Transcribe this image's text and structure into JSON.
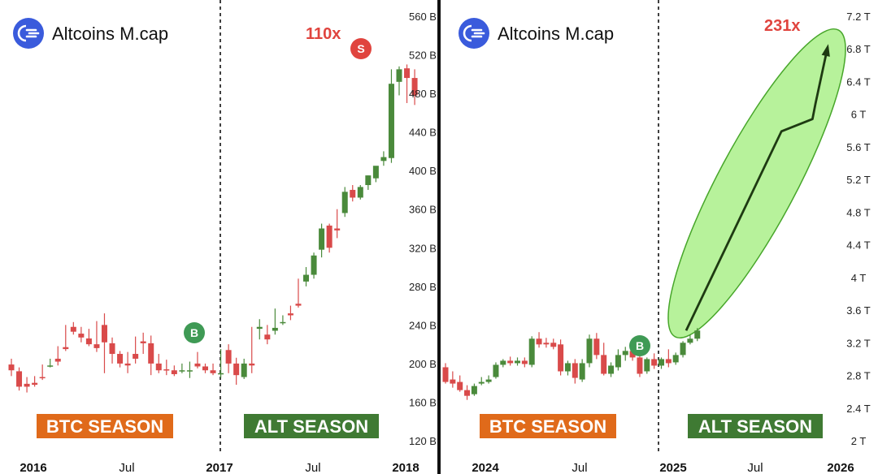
{
  "chart_data": [
    {
      "type": "candlestick",
      "title": "Altcoins M.cap",
      "y_unit": "B",
      "ylim": [
        120,
        560
      ],
      "yticks": [
        "560 B",
        "520 B",
        "480 B",
        "440 B",
        "400 B",
        "360 B",
        "320 B",
        "280 B",
        "240 B",
        "200 B",
        "160 B",
        "120 B"
      ],
      "ytick_values": [
        560,
        520,
        480,
        440,
        400,
        360,
        320,
        280,
        240,
        200,
        160,
        120
      ],
      "xticks": [
        "2016",
        "Jul",
        "2017",
        "Jul",
        "2018"
      ],
      "annotations": {
        "multiplier": "110x",
        "buy_marker": "B",
        "sell_marker": "S"
      },
      "seasons": [
        "BTC SEASON",
        "ALT SEASON"
      ],
      "colors": {
        "up": "#4a8a3b",
        "down": "#d94a4a",
        "btc_season": "#e06a1a",
        "alt_season": "#3f7a33",
        "sell": "#e0443e",
        "buy": "#3f9a55"
      },
      "candles": [
        [
          199,
          205,
          193,
          187
        ],
        [
          192,
          196,
          176,
          172
        ],
        [
          179,
          186,
          176,
          170
        ],
        [
          180,
          187,
          178,
          176
        ],
        [
          186,
          199,
          185,
          183
        ],
        [
          198,
          205,
          198,
          196
        ],
        [
          205,
          218,
          202,
          198
        ],
        [
          217,
          240,
          215,
          213
        ],
        [
          238,
          243,
          233,
          230
        ],
        [
          231,
          238,
          227,
          222
        ],
        [
          226,
          236,
          220,
          218
        ],
        [
          220,
          244,
          216,
          212
        ],
        [
          240,
          252,
          222,
          190
        ],
        [
          221,
          227,
          210,
          200
        ],
        [
          210,
          213,
          200,
          196
        ],
        [
          200,
          212,
          198,
          190
        ],
        [
          210,
          228,
          205,
          200
        ],
        [
          223,
          232,
          221,
          210
        ],
        [
          221,
          229,
          200,
          188
        ],
        [
          200,
          210,
          193,
          190
        ],
        [
          194,
          204,
          193,
          188
        ],
        [
          193,
          198,
          189,
          187
        ],
        [
          193,
          200,
          193,
          190
        ],
        [
          193,
          202,
          193,
          185
        ],
        [
          200,
          212,
          197,
          195
        ],
        [
          197,
          200,
          193,
          190
        ],
        [
          193,
          200,
          190,
          188
        ],
        [
          190,
          215,
          190,
          185
        ],
        [
          214,
          220,
          200,
          190
        ],
        [
          200,
          206,
          188,
          178
        ],
        [
          186,
          205,
          200,
          184
        ],
        [
          200,
          238,
          198,
          190
        ],
        [
          236,
          246,
          238,
          225
        ],
        [
          230,
          240,
          225,
          220
        ],
        [
          234,
          257,
          237,
          230
        ],
        [
          243,
          250,
          243,
          240
        ],
        [
          252,
          260,
          250,
          245
        ],
        [
          262,
          288,
          260,
          258
        ],
        [
          285,
          300,
          292,
          280
        ],
        [
          292,
          315,
          312,
          288
        ],
        [
          318,
          345,
          340,
          310
        ],
        [
          343,
          345,
          320,
          315
        ],
        [
          340,
          360,
          338,
          330
        ],
        [
          356,
          383,
          378,
          352
        ],
        [
          380,
          385,
          372,
          368
        ],
        [
          372,
          385,
          383,
          370
        ],
        [
          385,
          395,
          395,
          380
        ],
        [
          392,
          400,
          405,
          388
        ],
        [
          410,
          420,
          414,
          405
        ],
        [
          413,
          505,
          490,
          408
        ],
        [
          492,
          508,
          505,
          478
        ],
        [
          506,
          510,
          496,
          470
        ],
        [
          496,
          505,
          478,
          468
        ]
      ]
    },
    {
      "type": "line",
      "title": "Altcoins M.cap",
      "y_unit": "T",
      "ylim": [
        2.0,
        7.2
      ],
      "yticks": [
        "7.2 T",
        "6.8 T",
        "6.4 T",
        "6 T",
        "5.6 T",
        "5.2 T",
        "4.8 T",
        "4.4 T",
        "4 T",
        "3.6 T",
        "3.2 T",
        "2.8 T",
        "2.4 T",
        "2 T"
      ],
      "ytick_values": [
        7.2,
        6.8,
        6.4,
        6.0,
        5.6,
        5.2,
        4.8,
        4.4,
        4.0,
        3.6,
        3.2,
        2.8,
        2.4,
        2.0
      ],
      "xticks": [
        "2024",
        "Jul",
        "2025",
        "Jul",
        "2026"
      ],
      "annotations": {
        "multiplier": "231x",
        "buy_marker": "B"
      },
      "seasons": [
        "BTC SEASON",
        "ALT SEASON"
      ],
      "colors": {
        "up": "#4a8a3b",
        "down": "#d94a4a",
        "btc_season": "#e06a1a",
        "alt_season": "#3f7a33",
        "forecast_fill": "#aaf08a",
        "forecast_line": "#1e3a12",
        "buy": "#3f9a55"
      },
      "candles": [
        [
          2.9,
          2.95,
          2.72,
          2.7
        ],
        [
          2.75,
          2.85,
          2.7,
          2.65
        ],
        [
          2.72,
          2.8,
          2.62,
          2.6
        ],
        [
          2.62,
          2.68,
          2.55,
          2.5
        ],
        [
          2.57,
          2.7,
          2.67,
          2.55
        ],
        [
          2.7,
          2.78,
          2.72,
          2.68
        ],
        [
          2.72,
          2.8,
          2.75,
          2.7
        ],
        [
          2.78,
          2.96,
          2.93,
          2.76
        ],
        [
          2.93,
          3.0,
          2.98,
          2.9
        ],
        [
          2.98,
          3.03,
          2.95,
          2.92
        ],
        [
          2.95,
          3.02,
          2.98,
          2.92
        ],
        [
          2.98,
          3.02,
          2.94,
          2.9
        ],
        [
          2.93,
          3.28,
          3.25,
          2.9
        ],
        [
          3.25,
          3.33,
          3.18,
          3.14
        ],
        [
          3.2,
          3.26,
          3.18,
          3.14
        ],
        [
          3.2,
          3.25,
          3.15,
          3.12
        ],
        [
          3.18,
          3.24,
          2.85,
          2.8
        ],
        [
          2.85,
          2.98,
          2.95,
          2.8
        ],
        [
          2.95,
          3.0,
          2.77,
          2.7
        ],
        [
          2.75,
          3.0,
          2.95,
          2.72
        ],
        [
          2.95,
          3.3,
          3.25,
          2.9
        ],
        [
          3.25,
          3.32,
          3.05,
          3.0
        ],
        [
          3.05,
          3.2,
          2.82,
          2.8
        ],
        [
          2.82,
          2.96,
          2.92,
          2.78
        ],
        [
          2.9,
          3.12,
          3.05,
          2.86
        ],
        [
          3.05,
          3.15,
          3.1,
          2.98
        ],
        [
          3.1,
          3.2,
          3.02,
          2.98
        ],
        [
          3.02,
          3.05,
          2.82,
          2.78
        ],
        [
          2.85,
          3.02,
          3.0,
          2.82
        ],
        [
          3.0,
          3.07,
          2.92,
          2.88
        ],
        [
          2.92,
          3.02,
          3.0,
          2.88
        ],
        [
          3.0,
          3.12,
          2.95,
          2.9
        ],
        [
          2.96,
          3.08,
          3.05,
          2.93
        ],
        [
          3.05,
          3.22,
          3.2,
          3.02
        ],
        [
          3.2,
          3.3,
          3.25,
          3.18
        ],
        [
          3.25,
          3.38,
          3.35,
          3.22
        ]
      ],
      "forecast_path": [
        [
          3.36,
          3.35
        ],
        [
          5.88,
          5.79
        ],
        [
          6.7,
          5.94
        ],
        [
          6.78,
          6.13
        ],
        [
          7.1,
          6.82
        ]
      ]
    }
  ]
}
